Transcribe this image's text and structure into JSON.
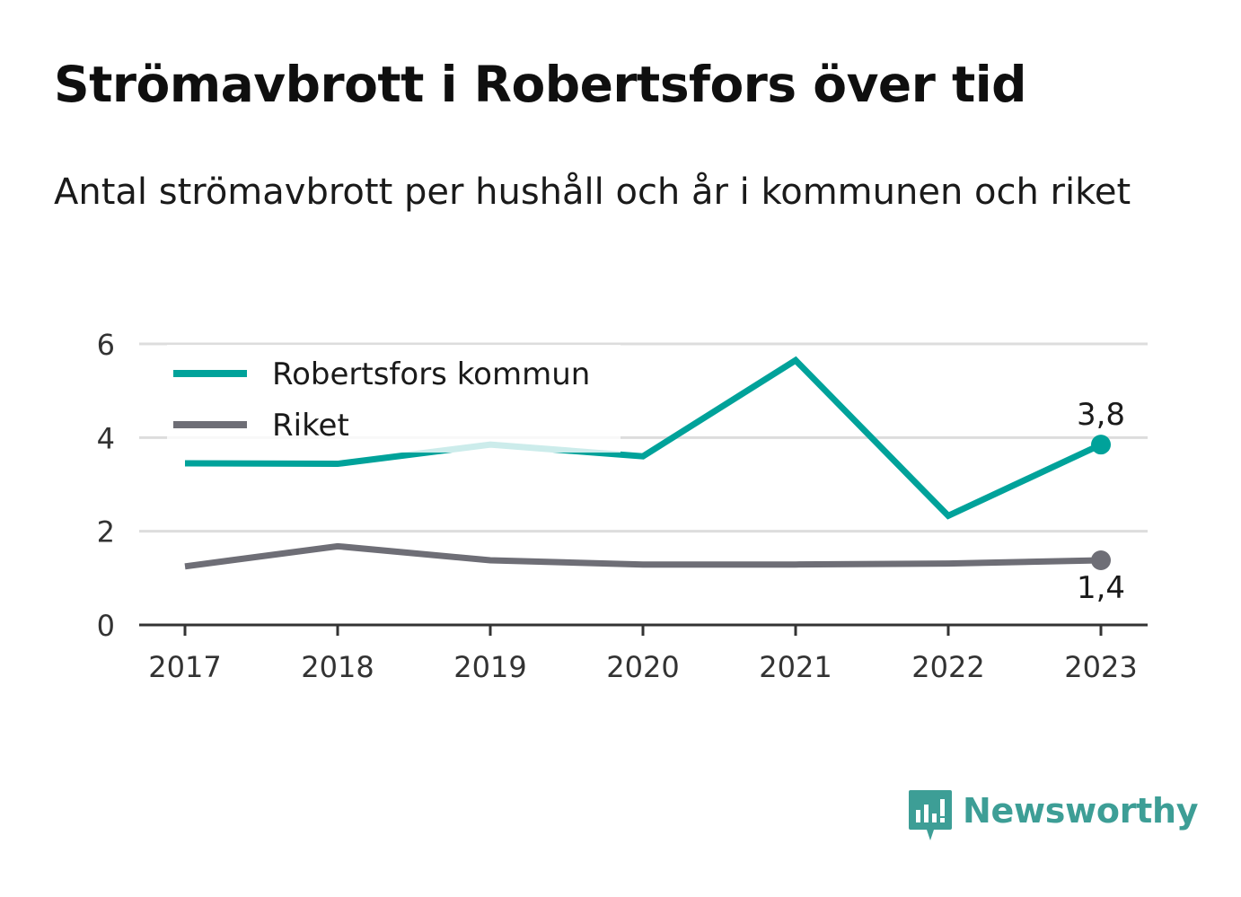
{
  "title": "Strömavbrott i Robertsfors över tid",
  "subtitle": "Antal strömavbrott per hushåll och år i kommunen och riket",
  "brand": {
    "name": "Newsworthy",
    "icon": "newsworthy-logo-icon",
    "color": "#3d9e96"
  },
  "chart_data": {
    "type": "line",
    "x": [
      "2017",
      "2018",
      "2019",
      "2020",
      "2021",
      "2022",
      "2023"
    ],
    "ylim": [
      0,
      6
    ],
    "yticks": [
      "0",
      "2",
      "4",
      "6"
    ],
    "grid": true,
    "legend_position": "top-left",
    "series": [
      {
        "name": "Robertsfors kommun",
        "color": "#00a29a",
        "values": [
          3.45,
          3.44,
          3.85,
          3.6,
          5.65,
          2.33,
          3.85
        ],
        "end_label": "3,8"
      },
      {
        "name": "Riket",
        "color": "#6e6e76",
        "values": [
          1.25,
          1.68,
          1.38,
          1.29,
          1.29,
          1.31,
          1.38
        ],
        "end_label": "1,4"
      }
    ]
  }
}
